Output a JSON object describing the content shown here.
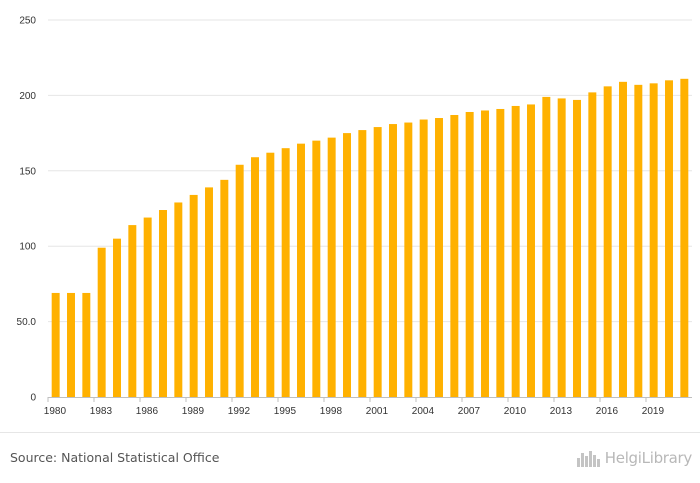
{
  "chart_data": {
    "type": "bar",
    "categories": [
      "1980",
      "1981",
      "1982",
      "1983",
      "1984",
      "1985",
      "1986",
      "1987",
      "1988",
      "1989",
      "1990",
      "1991",
      "1992",
      "1993",
      "1994",
      "1995",
      "1996",
      "1997",
      "1998",
      "1999",
      "2000",
      "2001",
      "2002",
      "2003",
      "2004",
      "2005",
      "2006",
      "2007",
      "2008",
      "2009",
      "2010",
      "2011",
      "2012",
      "2013",
      "2014",
      "2015",
      "2016",
      "2017",
      "2018",
      "2019",
      "2020",
      "2021"
    ],
    "x_tick_labels": [
      "1980",
      "1983",
      "1986",
      "1989",
      "1992",
      "1995",
      "1998",
      "2001",
      "2004",
      "2007",
      "2010",
      "2013",
      "2016",
      "2019"
    ],
    "values": [
      69,
      69,
      69,
      99,
      105,
      114,
      119,
      124,
      129,
      134,
      139,
      144,
      154,
      159,
      162,
      165,
      168,
      170,
      172,
      175,
      177,
      179,
      181,
      182,
      184,
      185,
      187,
      189,
      190,
      191,
      193,
      194,
      199,
      198,
      197,
      202,
      206,
      209,
      207,
      208,
      210,
      211
    ],
    "y_ticks": [
      0,
      50,
      100,
      150,
      200,
      250
    ],
    "y_tick_labels": [
      "0",
      "50.0",
      "100",
      "150",
      "200",
      "250"
    ],
    "ylim": [
      0,
      250
    ],
    "title": "",
    "xlabel": "",
    "ylabel": "",
    "grid": true,
    "bar_color": "#FFB100",
    "grid_color": "#e6e6e6",
    "axis_color": "#bfbfbf"
  },
  "footer": {
    "source": "Source: National Statistical Office",
    "brand": "HelgiLibrary",
    "brand_icon": "city-skyline-icon"
  }
}
